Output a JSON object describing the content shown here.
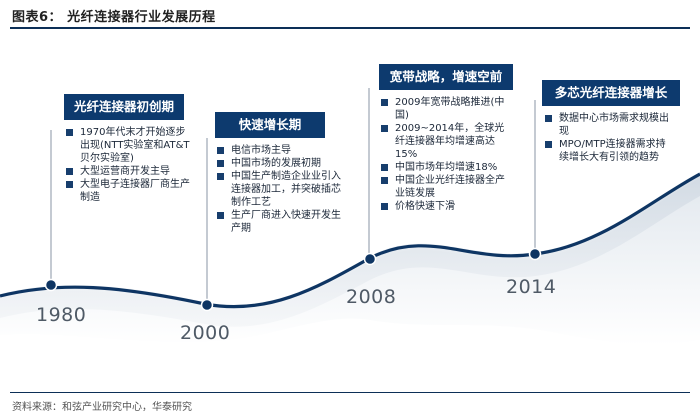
{
  "figure_title": "图表6：  光纤连接器行业发展历程",
  "source": "资料来源：和弦产业研究中心，华泰研究",
  "years": [
    "1980",
    "2000",
    "2008",
    "2014"
  ],
  "stages": [
    {
      "title": "光纤连接器初创期",
      "bullets": [
        "1970年代末才开始逐步出现(NTT实验室和AT&T贝尔实验室)",
        "大型运营商开发主导",
        "大型电子连接器厂商生产制造"
      ]
    },
    {
      "title": "快速增长期",
      "bullets": [
        "电信市场主导",
        "中国市场的发展初期",
        "中国生产制造企业业引入连接器加工，并突破插芯制作工艺",
        "生产厂商进入快速开发生产期"
      ]
    },
    {
      "title": "宽带战略，增速空前",
      "bullets": [
        "2009年宽带战略推进(中国)",
        "2009~2014年，全球光纤连接器年均增速高达15%",
        "中国市场年均增速18%",
        "中国企业光纤连接器全产业链发展",
        "价格快速下滑"
      ]
    },
    {
      "title": "多芯光纤连接器增长",
      "bullets": [
        "数据中心市场需求规模出现",
        "MPO/MTP连接器需求持续增长大有引领的趋势"
      ]
    }
  ]
}
